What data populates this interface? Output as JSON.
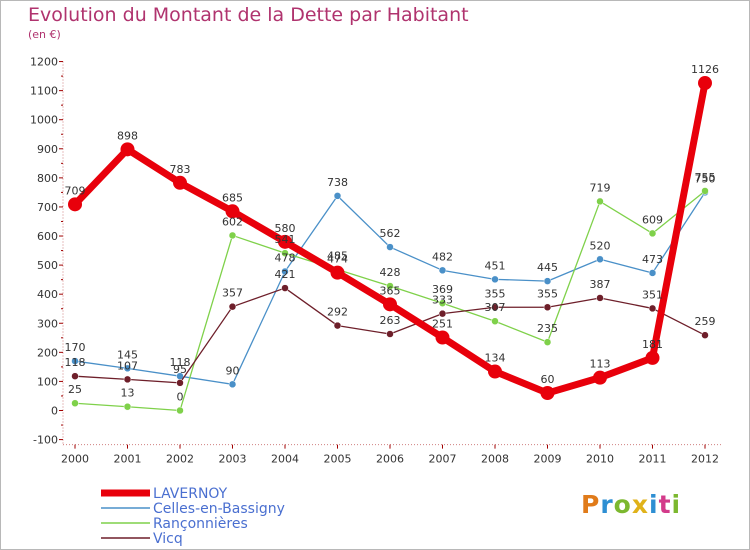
{
  "title": "Evolution du Montant de la Dette par Habitant",
  "subtitle": "(en €)",
  "logo": "Proxiti",
  "logo_colors": [
    "#e07b1a",
    "#2e8fd3",
    "#7cb82f",
    "#e0b21a",
    "#2e8fd3",
    "#d33a8a",
    "#7cb82f"
  ],
  "chart_data": {
    "type": "line",
    "x": [
      "2000",
      "2001",
      "2002",
      "2003",
      "2004",
      "2005",
      "2006",
      "2007",
      "2008",
      "2009",
      "2010",
      "2011",
      "2012"
    ],
    "ylim": [
      -100,
      1200
    ],
    "yticks": [
      "-100",
      "0",
      "100",
      "200",
      "300",
      "400",
      "500",
      "600",
      "700",
      "800",
      "900",
      "1000",
      "1100",
      "1200"
    ],
    "grid": false,
    "legend_position": "bottom-left",
    "series": [
      {
        "name": "LAVERNOY",
        "color": "#e8000b",
        "values": [
          709,
          898,
          783,
          685,
          580,
          474,
          365,
          251,
          134,
          60,
          113,
          181,
          1126
        ],
        "labels": [
          "709",
          "898",
          "783",
          "685",
          "580",
          "474",
          "365",
          "251",
          "134",
          "60",
          "113",
          "181",
          "1126"
        ]
      },
      {
        "name": "Celles-en-Bassigny",
        "color": "#4a90c8",
        "values": [
          170,
          145,
          118,
          90,
          478,
          738,
          562,
          482,
          451,
          445,
          520,
          473,
          750
        ],
        "labels": [
          "170",
          "145",
          "118",
          "90",
          "478",
          "738",
          "562",
          "482",
          "451",
          "445",
          "520",
          "473",
          "750"
        ]
      },
      {
        "name": "Rançonnières",
        "color": "#7fd14a",
        "values": [
          25,
          13,
          0,
          602,
          541,
          485,
          428,
          369,
          307,
          235,
          719,
          609,
          755
        ],
        "labels": [
          "25",
          "13",
          "0",
          "602",
          "541",
          "485",
          "428",
          "369",
          "307",
          "235",
          "719",
          "609",
          "755"
        ]
      },
      {
        "name": "Vicq",
        "color": "#6e1f2a",
        "values": [
          118,
          107,
          95,
          357,
          421,
          292,
          263,
          333,
          355,
          355,
          387,
          351,
          259
        ],
        "labels": [
          "118",
          "107",
          "95",
          "357",
          "421",
          "292",
          "263",
          "333",
          "355",
          "355",
          "387",
          "351",
          "259"
        ]
      }
    ]
  }
}
